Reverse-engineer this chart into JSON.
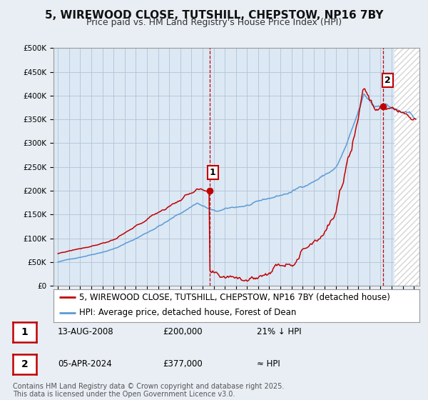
{
  "title": "5, WIREWOOD CLOSE, TUTSHILL, CHEPSTOW, NP16 7BY",
  "subtitle": "Price paid vs. HM Land Registry's House Price Index (HPI)",
  "ylim": [
    0,
    500000
  ],
  "yticks": [
    0,
    50000,
    100000,
    150000,
    200000,
    250000,
    300000,
    350000,
    400000,
    450000,
    500000
  ],
  "ytick_labels": [
    "£0",
    "£50K",
    "£100K",
    "£150K",
    "£200K",
    "£250K",
    "£300K",
    "£350K",
    "£400K",
    "£450K",
    "£500K"
  ],
  "hpi_color": "#5b9bd5",
  "price_color": "#c00000",
  "marker1_date_x": 2008.617,
  "marker1_y": 200000,
  "marker1_label": "1",
  "marker2_date_x": 2024.258,
  "marker2_y": 377000,
  "marker2_label": "2",
  "vline1_x": 2008.617,
  "vline2_x": 2024.258,
  "legend_line1": "5, WIREWOOD CLOSE, TUTSHILL, CHEPSTOW, NP16 7BY (detached house)",
  "legend_line2": "HPI: Average price, detached house, Forest of Dean",
  "table_row1": [
    "1",
    "13-AUG-2008",
    "£200,000",
    "21% ↓ HPI"
  ],
  "table_row2": [
    "2",
    "05-APR-2024",
    "£377,000",
    "≈ HPI"
  ],
  "footer": "Contains HM Land Registry data © Crown copyright and database right 2025.\nThis data is licensed under the Open Government Licence v3.0.",
  "bg_color": "#e8eef4",
  "plot_bg_color": "#dce8f4",
  "grid_color": "#b0c4d8",
  "hatch_start": 2025.25,
  "xlim_left": 1994.6,
  "xlim_right": 2027.5,
  "title_fontsize": 11,
  "subtitle_fontsize": 9,
  "tick_fontsize": 7.5,
  "legend_fontsize": 8.5,
  "footer_fontsize": 7
}
